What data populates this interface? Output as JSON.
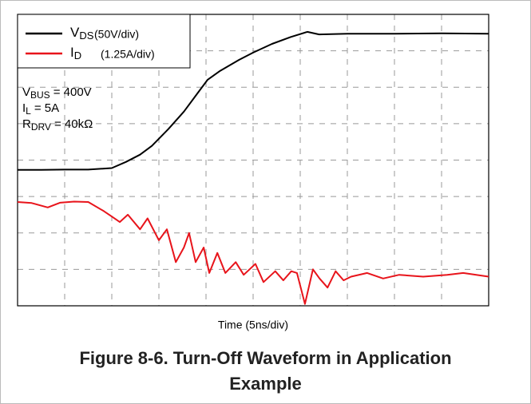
{
  "chart_data": {
    "type": "line",
    "x_label": "Time (5ns/div)",
    "caption": "Figure 8-6. Turn-Off Waveform in Application Example",
    "xlim": [
      0,
      10
    ],
    "xticks": [
      0,
      1,
      2,
      3,
      4,
      5,
      6,
      7,
      8,
      9,
      10
    ],
    "ylim": [
      0,
      8
    ],
    "yticks": [
      0,
      1,
      2,
      3,
      4,
      5,
      6,
      7,
      8
    ],
    "grid": true,
    "series": [
      {
        "name": "V",
        "name_sub": "DS",
        "scale": "(50V/div)",
        "color": "#000000",
        "x": [
          0,
          0.5,
          1,
          1.5,
          2,
          2.3,
          2.6,
          2.85,
          3.2,
          3.53,
          3.8,
          4.03,
          4.3,
          4.7,
          5.0,
          5.4,
          5.8,
          6.15,
          6.4,
          7,
          8,
          9,
          10
        ],
        "values": [
          3.73,
          3.73,
          3.74,
          3.74,
          3.78,
          3.95,
          4.15,
          4.39,
          4.85,
          5.33,
          5.8,
          6.2,
          6.45,
          6.75,
          6.95,
          7.19,
          7.38,
          7.52,
          7.45,
          7.47,
          7.47,
          7.48,
          7.47
        ]
      },
      {
        "name": "I",
        "name_sub": "D",
        "scale": "(1.25A/div)",
        "color": "#e8141b",
        "x": [
          0,
          0.3,
          0.64,
          0.9,
          1.2,
          1.5,
          1.83,
          2.0,
          2.17,
          2.34,
          2.6,
          2.76,
          3.0,
          3.17,
          3.36,
          3.53,
          3.64,
          3.78,
          3.95,
          4.07,
          4.24,
          4.41,
          4.63,
          4.8,
          5.05,
          5.22,
          5.47,
          5.64,
          5.81,
          5.93,
          6.1,
          6.27,
          6.41,
          6.58,
          6.75,
          6.92,
          7.08,
          7.42,
          7.76,
          8.1,
          8.61,
          9.12,
          9.46,
          10
        ],
        "values": [
          2.85,
          2.82,
          2.7,
          2.83,
          2.86,
          2.85,
          2.6,
          2.45,
          2.3,
          2.5,
          2.1,
          2.4,
          1.8,
          2.1,
          1.2,
          1.6,
          2.0,
          1.2,
          1.6,
          0.9,
          1.45,
          0.9,
          1.2,
          0.85,
          1.15,
          0.65,
          0.95,
          0.7,
          0.95,
          0.9,
          0.05,
          1.0,
          0.75,
          0.5,
          0.95,
          0.7,
          0.8,
          0.9,
          0.75,
          0.85,
          0.8,
          0.85,
          0.9,
          0.8
        ]
      }
    ],
    "annotations": [
      {
        "main": "V",
        "sub": "BUS",
        "text": "=  400V"
      },
      {
        "main": "I",
        "sub": "L",
        "text": "=  5A"
      },
      {
        "main": "R",
        "sub": "DRV",
        "text": "=  40kΩ"
      }
    ]
  }
}
